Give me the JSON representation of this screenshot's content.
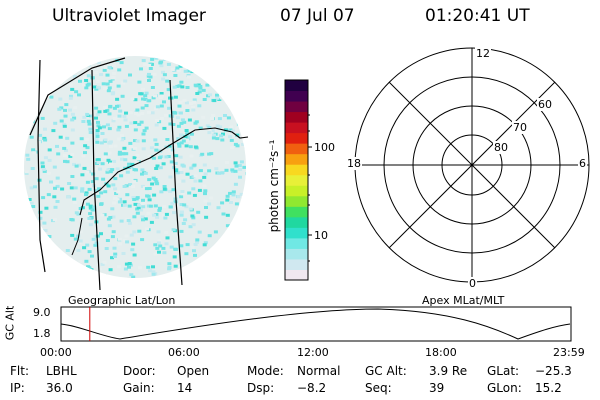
{
  "header": {
    "title": "Ultraviolet Imager",
    "date": "07 Jul 07",
    "time": "01:20:41 UT"
  },
  "colorbar": {
    "unit_label": "photon cm⁻²s⁻¹",
    "ticks": [
      "100",
      "10"
    ],
    "colors": [
      "#f0e8f0",
      "#d0e8f0",
      "#a8e8ec",
      "#70e8e4",
      "#30e0cc",
      "#20d8a0",
      "#40e060",
      "#90e830",
      "#c8f028",
      "#e8f038",
      "#f8d820",
      "#f8a010",
      "#f06010",
      "#e02010",
      "#c81020",
      "#a00020",
      "#700040",
      "#400050",
      "#200040"
    ]
  },
  "polar_plot": {
    "mlt_labels": {
      "top": "12",
      "left": "18",
      "right": "6",
      "bottom": "0"
    },
    "lat_labels": [
      "60",
      "70",
      "80"
    ]
  },
  "timeline": {
    "ylabel": "GC Alt",
    "y_ticks": [
      "9.0",
      "1.8"
    ],
    "left_title": "Geographic Lat/Lon",
    "right_title": "Apex MLat/MLT",
    "x_ticks": [
      "00:00",
      "06:00",
      "12:00",
      "18:00",
      "23:59"
    ],
    "current_time_fraction": 0.0564
  },
  "info_rows": [
    [
      {
        "label": "Flt:",
        "value": "LBHL"
      },
      {
        "label": "Door:",
        "value": "Open"
      },
      {
        "label": "Mode:",
        "value": "Normal"
      },
      {
        "label": "GC Alt:",
        "value": "3.9 Re"
      },
      {
        "label": "GLat:",
        "value": "−25.3"
      }
    ],
    [
      {
        "label": "IP:",
        "value": "36.0"
      },
      {
        "label": "Gain:",
        "value": "14"
      },
      {
        "label": "Dsp:",
        "value": "−8.2"
      },
      {
        "label": "Seq:",
        "value": "39"
      },
      {
        "label": "GLon:",
        "value": "15.2"
      }
    ]
  ]
}
